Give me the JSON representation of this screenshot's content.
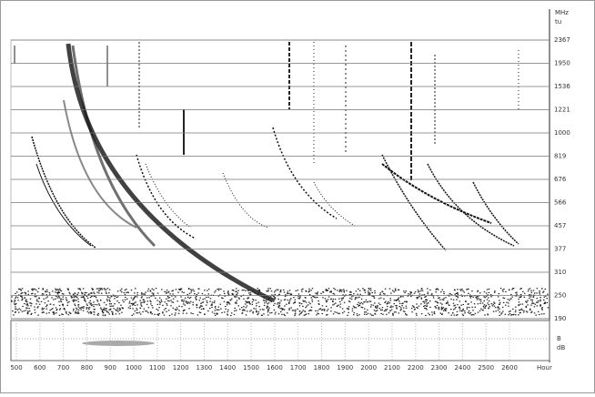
{
  "header": {
    "unit": "MHz",
    "unit2": "tu"
  },
  "right_axis": {
    "labels": [
      "2367",
      "1950",
      "1536",
      "1221",
      "1000",
      "819",
      "676",
      "566",
      "457",
      "377",
      "310",
      "250",
      "190"
    ]
  },
  "lower_panel": {
    "labels": [
      "B",
      "dB"
    ]
  },
  "x_axis": {
    "labels": [
      "500",
      "600",
      "700",
      "800",
      "900",
      "1000",
      "1100",
      "1200",
      "1300",
      "1400",
      "1500",
      "1600",
      "1700",
      "1800",
      "1900",
      "2000",
      "2100",
      "2200",
      "2300",
      "2400",
      "2500",
      "2600"
    ],
    "unit": "Hour"
  }
}
